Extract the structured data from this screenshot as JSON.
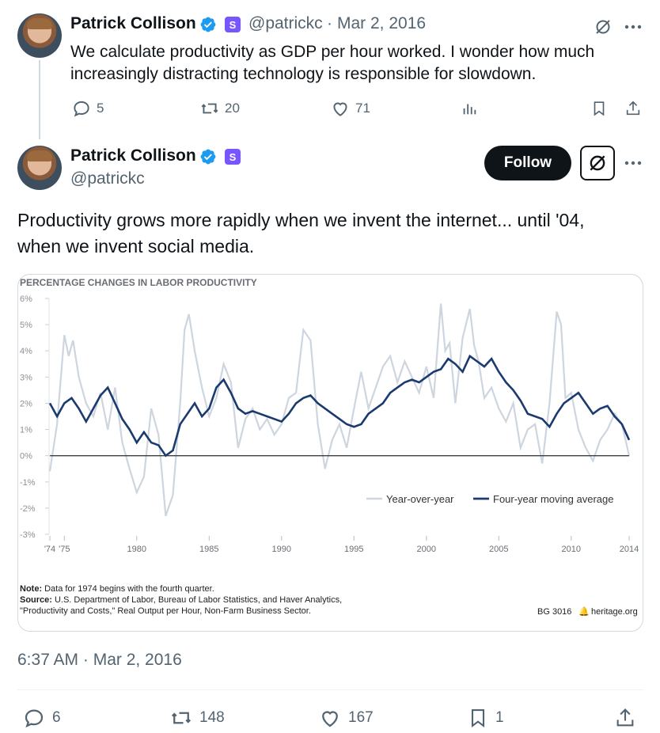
{
  "tweet1": {
    "author_name": "Patrick Collison",
    "verified_icon": "verified-badge-icon",
    "subscription_badge": "S",
    "handle": "@patrickc",
    "separator": "·",
    "date": "Mar 2, 2016",
    "text_line1": "We calculate productivity as GDP per hour worked. I wonder how much",
    "text_line2": "increasingly distracting technology is responsible for slowdown.",
    "replies": "5",
    "reposts": "20",
    "likes": "71"
  },
  "tweet2": {
    "author_name": "Patrick Collison",
    "subscription_badge": "S",
    "handle": "@patrickc",
    "follow_label": "Follow",
    "text_line1": "Productivity grows more rapidly when we invent the internet... until '04,",
    "text_line2": "when we invent social media.",
    "timestamp": "6:37 AM · Mar 2, 2016",
    "replies": "6",
    "reposts": "148",
    "likes": "167",
    "bookmarks": "1"
  },
  "colors": {
    "text_primary": "#0f1419",
    "text_secondary": "#536471",
    "verified_blue": "#1d9bf0",
    "subscription_purple": "#7856ff",
    "series_yoy": "#cdd5de",
    "series_ma": "#1a3a70"
  },
  "chart_data": {
    "type": "line",
    "title": "PERCENTAGE CHANGES IN LABOR PRODUCTIVITY",
    "y_ticks": [
      "6%",
      "5%",
      "4%",
      "3%",
      "2%",
      "1%",
      "0%",
      "-1%",
      "-2%",
      "-3%"
    ],
    "ylim": [
      -3,
      6
    ],
    "x_ticks": [
      "'74",
      "'75",
      "1980",
      "1985",
      "1990",
      "1995",
      "2000",
      "2005",
      "2010",
      "2014"
    ],
    "x_tick_values": [
      1974,
      1975,
      1980,
      1985,
      1990,
      1995,
      2000,
      2005,
      2010,
      2014
    ],
    "xlim": [
      1974,
      2014
    ],
    "legend": [
      "Year-over-year",
      "Four-year moving average"
    ],
    "series": [
      {
        "name": "Year-over-year",
        "x": [
          1974.0,
          1974.5,
          1975.0,
          1975.3,
          1975.6,
          1976.0,
          1976.5,
          1977.0,
          1977.5,
          1978.0,
          1978.5,
          1979.0,
          1979.5,
          1980.0,
          1980.5,
          1981.0,
          1981.5,
          1982.0,
          1982.5,
          1983.0,
          1983.3,
          1983.6,
          1984.0,
          1984.5,
          1985.0,
          1985.5,
          1986.0,
          1986.5,
          1987.0,
          1987.5,
          1988.0,
          1988.5,
          1989.0,
          1989.5,
          1990.0,
          1990.5,
          1991.0,
          1991.5,
          1992.0,
          1992.5,
          1993.0,
          1993.5,
          1994.0,
          1994.5,
          1995.0,
          1995.5,
          1996.0,
          1996.5,
          1997.0,
          1997.5,
          1998.0,
          1998.5,
          1999.0,
          1999.5,
          2000.0,
          2000.5,
          2001.0,
          2001.3,
          2001.6,
          2002.0,
          2002.5,
          2003.0,
          2003.3,
          2003.6,
          2004.0,
          2004.5,
          2005.0,
          2005.5,
          2006.0,
          2006.5,
          2007.0,
          2007.5,
          2008.0,
          2008.5,
          2009.0,
          2009.3,
          2009.6,
          2010.0,
          2010.5,
          2011.0,
          2011.5,
          2012.0,
          2012.5,
          2013.0,
          2013.5,
          2014.0
        ],
        "values": [
          -0.6,
          1.2,
          4.6,
          3.8,
          4.4,
          3.0,
          2.0,
          1.5,
          2.4,
          1.0,
          2.6,
          0.5,
          -0.5,
          -1.4,
          -0.8,
          1.8,
          0.8,
          -2.3,
          -1.5,
          2.0,
          4.8,
          5.4,
          4.0,
          2.6,
          1.5,
          2.2,
          3.5,
          2.8,
          0.3,
          1.4,
          1.8,
          1.0,
          1.4,
          0.8,
          1.2,
          2.2,
          2.4,
          4.8,
          4.4,
          1.2,
          -0.5,
          0.6,
          1.2,
          0.3,
          1.8,
          3.2,
          1.8,
          2.6,
          3.4,
          3.8,
          2.8,
          3.6,
          3.0,
          2.4,
          3.4,
          2.2,
          5.8,
          4.0,
          4.3,
          2.0,
          4.5,
          5.6,
          4.2,
          3.6,
          2.2,
          2.6,
          1.8,
          1.3,
          2.0,
          0.3,
          1.0,
          1.2,
          -0.3,
          2.0,
          5.5,
          5.0,
          2.2,
          2.4,
          1.0,
          0.3,
          -0.2,
          0.6,
          1.0,
          1.6,
          1.2,
          0.0
        ]
      },
      {
        "name": "Four-year moving average",
        "x": [
          1974.0,
          1974.5,
          1975.0,
          1975.5,
          1976.0,
          1976.5,
          1977.0,
          1977.5,
          1978.0,
          1978.5,
          1979.0,
          1979.5,
          1980.0,
          1980.5,
          1981.0,
          1981.5,
          1982.0,
          1982.5,
          1983.0,
          1983.5,
          1984.0,
          1984.5,
          1985.0,
          1985.5,
          1986.0,
          1986.5,
          1987.0,
          1987.5,
          1988.0,
          1988.5,
          1989.0,
          1989.5,
          1990.0,
          1990.5,
          1991.0,
          1991.5,
          1992.0,
          1992.5,
          1993.0,
          1993.5,
          1994.0,
          1994.5,
          1995.0,
          1995.5,
          1996.0,
          1996.5,
          1997.0,
          1997.5,
          1998.0,
          1998.5,
          1999.0,
          1999.5,
          2000.0,
          2000.5,
          2001.0,
          2001.5,
          2002.0,
          2002.5,
          2003.0,
          2003.5,
          2004.0,
          2004.5,
          2005.0,
          2005.5,
          2006.0,
          2006.5,
          2007.0,
          2007.5,
          2008.0,
          2008.5,
          2009.0,
          2009.5,
          2010.0,
          2010.5,
          2011.0,
          2011.5,
          2012.0,
          2012.5,
          2013.0,
          2013.5,
          2014.0
        ],
        "values": [
          2.0,
          1.5,
          2.0,
          2.2,
          1.8,
          1.3,
          1.8,
          2.3,
          2.6,
          2.0,
          1.4,
          1.0,
          0.5,
          0.9,
          0.5,
          0.4,
          0.0,
          0.2,
          1.2,
          1.6,
          2.0,
          1.5,
          1.8,
          2.6,
          2.9,
          2.4,
          1.8,
          1.6,
          1.7,
          1.6,
          1.5,
          1.4,
          1.3,
          1.6,
          2.0,
          2.2,
          2.3,
          2.0,
          1.8,
          1.6,
          1.4,
          1.2,
          1.1,
          1.2,
          1.6,
          1.8,
          2.0,
          2.4,
          2.6,
          2.8,
          2.9,
          2.8,
          3.0,
          3.2,
          3.3,
          3.7,
          3.5,
          3.2,
          3.8,
          3.6,
          3.4,
          3.7,
          3.2,
          2.8,
          2.5,
          2.1,
          1.6,
          1.5,
          1.4,
          1.1,
          1.6,
          2.0,
          2.2,
          2.4,
          2.0,
          1.6,
          1.8,
          1.9,
          1.5,
          1.2,
          0.6
        ]
      }
    ],
    "note": "Data for 1974 begins with the fourth quarter.",
    "note_label": "Note:",
    "source_label": "Source:",
    "source_line1": "U.S. Department of Labor, Bureau of Labor Statistics, and Haver Analytics,",
    "source_line2": "\"Productivity and Costs,\" Real Output per Hour, Non-Farm Business Sector.",
    "report_id": "BG 3016",
    "publisher": "heritage.org"
  }
}
